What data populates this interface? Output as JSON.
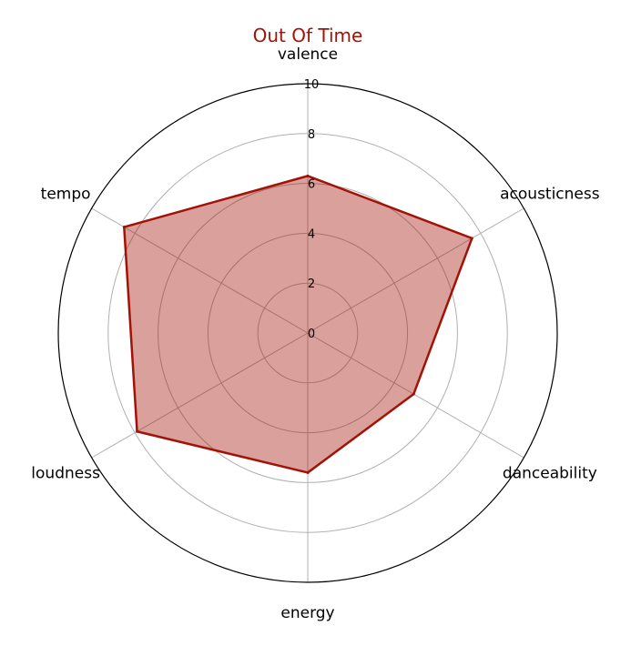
{
  "chart_data": {
    "type": "radar",
    "title": "Out Of Time",
    "categories": [
      "valence",
      "acousticness",
      "danceability",
      "energy",
      "loudness",
      "tempo"
    ],
    "series": [
      {
        "values": [
          6.3,
          7.6,
          4.9,
          5.6,
          7.9,
          8.5
        ]
      }
    ],
    "rlim": [
      0,
      10
    ],
    "rticks": [
      0,
      2,
      4,
      6,
      8,
      10
    ],
    "grid": true,
    "colors": {
      "title": "#a31206",
      "line": "#a31206",
      "fill": "#a31206",
      "grid": "#b0b0b0",
      "outer_ring": "#000000"
    }
  }
}
